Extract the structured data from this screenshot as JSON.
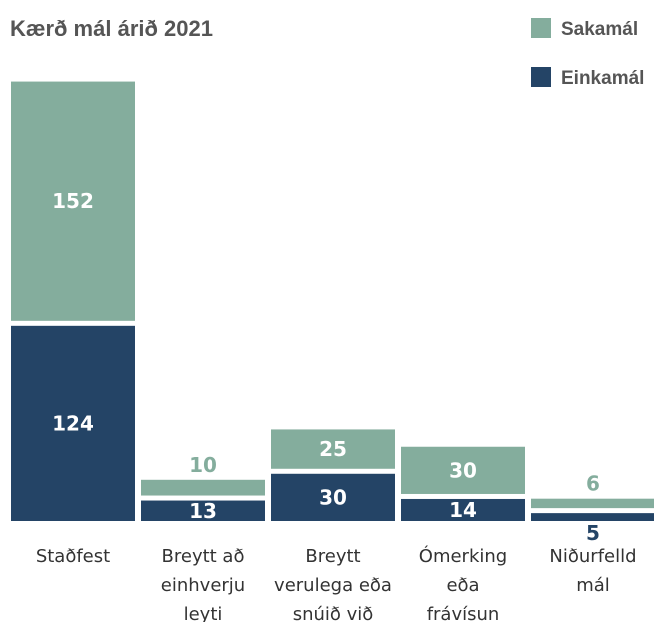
{
  "chart_data": {
    "type": "bar",
    "stacked": true,
    "title": "Kærð mál árið 2021",
    "legend_position": "top-right",
    "grid": false,
    "ylim": [
      0,
      290
    ],
    "categories": [
      [
        "Staðfest"
      ],
      [
        "Breytt að",
        "einhverju",
        "leyti"
      ],
      [
        "Breytt",
        "verulega eða",
        "snúið við"
      ],
      [
        "Ómerking",
        "eða",
        "frávísun"
      ],
      [
        "Niðurfelld",
        "mál"
      ]
    ],
    "series": [
      {
        "name": "Einkamál",
        "color": "#244466",
        "values": [
          124,
          13,
          30,
          14,
          5
        ]
      },
      {
        "name": "Sakamál",
        "color": "#84ad9d",
        "values": [
          152,
          10,
          25,
          30,
          6
        ]
      }
    ],
    "value_labels": {
      "Einkamál": [
        "124",
        "13",
        "30",
        "14",
        "5"
      ],
      "Sakamál": [
        "152",
        "10",
        "25",
        "30",
        "6"
      ]
    }
  }
}
